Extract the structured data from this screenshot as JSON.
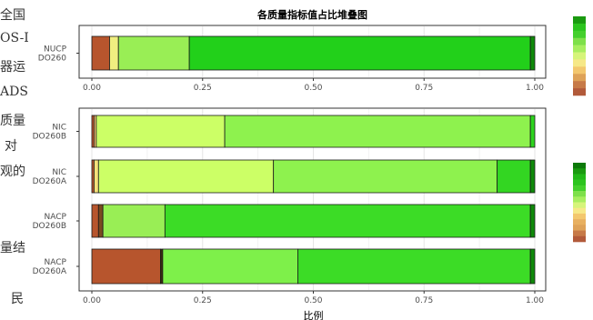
{
  "background_text": [
    "全国",
    "OS-I",
    "器运",
    "ADS",
    "质量",
    "对",
    "观的",
    "量结",
    "民"
  ],
  "chart_data": [
    {
      "type": "bar",
      "orientation": "horizontal",
      "stacked": true,
      "title": "各质量指标值占比堆叠图",
      "xlabel": "",
      "categories": [
        "NUCP\nDO260"
      ],
      "xlim": [
        0,
        1
      ],
      "xticks": [
        "0.00",
        "0.25",
        "0.50",
        "0.75",
        "1.00"
      ],
      "grid": true,
      "legend": "right",
      "legend_colors": [
        "#1a9a10",
        "#2cc41e",
        "#44d02c",
        "#7ee04a",
        "#a8ee60",
        "#d6f47a",
        "#f6e888",
        "#f3c76e",
        "#dea258",
        "#c77a48",
        "#b25a3a"
      ],
      "segments": [
        [
          {
            "value": 0.04,
            "color": "#b7552d"
          },
          {
            "value": 0.02,
            "color": "#f0ee80"
          },
          {
            "value": 0.16,
            "color": "#99ee55"
          },
          {
            "value": 0.77,
            "color": "#22d01a"
          },
          {
            "value": 0.01,
            "color": "#0f8a0a"
          }
        ]
      ]
    },
    {
      "type": "bar",
      "orientation": "horizontal",
      "stacked": true,
      "xlabel": "比例",
      "categories": [
        "NIC\nDO260B",
        "NIC\nDO260A",
        "NACP\nDO260B",
        "NACP\nDO260A"
      ],
      "xlim": [
        0,
        1
      ],
      "xticks": [
        "0.00",
        "0.25",
        "0.50",
        "0.75",
        "1.00"
      ],
      "grid": true,
      "legend": "right",
      "legend_colors": [
        "#0d7a0a",
        "#1a9a10",
        "#22b818",
        "#2cc41e",
        "#44d02c",
        "#7ee04a",
        "#a8ee60",
        "#d6f47a",
        "#f6e888",
        "#f3c76e",
        "#e8b060",
        "#dea258",
        "#c77a48",
        "#b25a3a"
      ],
      "segments": [
        [
          {
            "value": 0.005,
            "color": "#b7552d"
          },
          {
            "value": 0.005,
            "color": "#f0c070"
          },
          {
            "value": 0.29,
            "color": "#ccff66"
          },
          {
            "value": 0.69,
            "color": "#8ef24e"
          },
          {
            "value": 0.01,
            "color": "#2dd41e"
          }
        ],
        [
          {
            "value": 0.005,
            "color": "#b7552d"
          },
          {
            "value": 0.01,
            "color": "#f6e07a"
          },
          {
            "value": 0.395,
            "color": "#ccff66"
          },
          {
            "value": 0.505,
            "color": "#8ef24e"
          },
          {
            "value": 0.075,
            "color": "#33d622"
          },
          {
            "value": 0.01,
            "color": "#0f8a0a"
          }
        ],
        [
          {
            "value": 0.015,
            "color": "#b7552d"
          },
          {
            "value": 0.01,
            "color": "#7a4a20"
          },
          {
            "value": 0.14,
            "color": "#99ee55"
          },
          {
            "value": 0.825,
            "color": "#3cdc26"
          },
          {
            "value": 0.01,
            "color": "#0f8a0a"
          }
        ],
        [
          {
            "value": 0.155,
            "color": "#b7552d"
          },
          {
            "value": 0.005,
            "color": "#3a2a10"
          },
          {
            "value": 0.305,
            "color": "#7ef04a"
          },
          {
            "value": 0.525,
            "color": "#3cdc26"
          },
          {
            "value": 0.01,
            "color": "#0f8a0a"
          }
        ]
      ]
    }
  ]
}
